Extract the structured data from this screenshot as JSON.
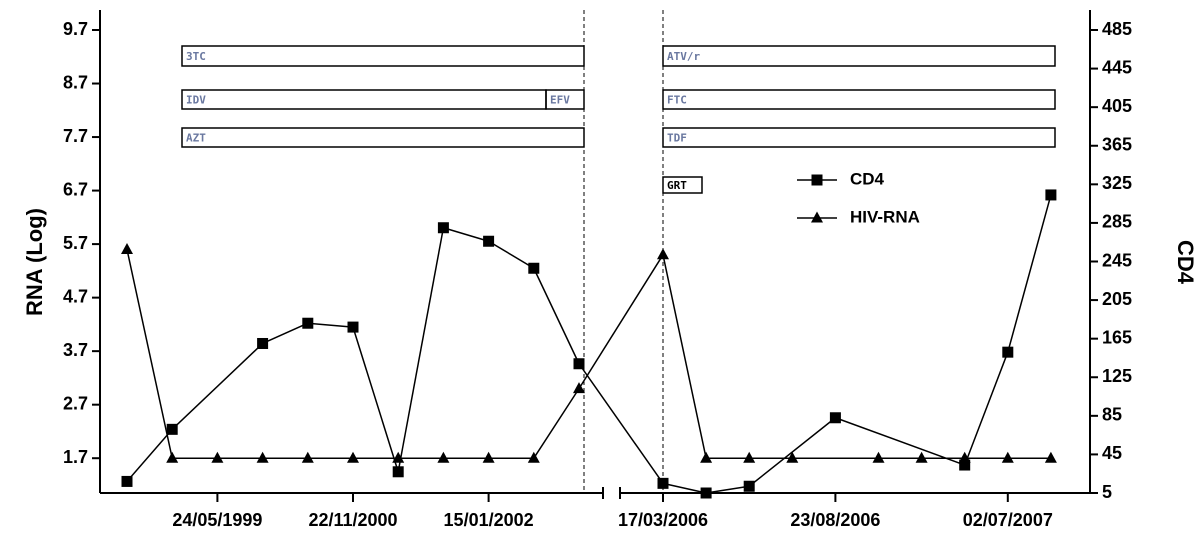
{
  "chart_data": {
    "type": "line",
    "categories": [
      null,
      null,
      "24/05/1999",
      null,
      null,
      "22/11/2000",
      null,
      null,
      "15/01/2002",
      null,
      null,
      "17/03/2006",
      null,
      null,
      null,
      "23/08/2006",
      null,
      null,
      null,
      "02/07/2007",
      null
    ],
    "series": [
      {
        "name": "CD4",
        "color": "#000000",
        "marker": "square",
        "axis": "y2",
        "values": [
          17,
          71,
          null,
          160,
          181,
          177,
          27,
          280,
          266,
          238,
          139,
          15,
          5,
          12,
          null,
          83,
          null,
          null,
          34,
          151,
          314
        ]
      },
      {
        "name": "HIV-RNA",
        "color": "#000000",
        "marker": "triangle",
        "values": [
          5.6,
          1.7,
          1.7,
          1.7,
          1.7,
          1.7,
          1.7,
          1.7,
          1.7,
          1.7,
          3.0,
          5.5,
          1.7,
          1.7,
          1.7,
          null,
          1.7,
          1.7,
          1.7,
          1.7,
          1.7
        ]
      }
    ],
    "ylabel": "RNA (Log)",
    "y2label": "CD4",
    "ylim": [
      1.05,
      9.7
    ],
    "yticks": [
      1.7,
      2.7,
      3.7,
      4.7,
      5.7,
      6.7,
      7.7,
      8.7,
      9.7
    ],
    "y2lim": [
      5,
      485
    ],
    "y2ticks": [
      5,
      45,
      85,
      125,
      165,
      205,
      245,
      285,
      325,
      365,
      405,
      445,
      485
    ],
    "annotations": [
      "3TC",
      "IDV",
      "EFV",
      "AZT",
      "ATV/r",
      "FTC",
      "TDF",
      "GRT"
    ]
  }
}
